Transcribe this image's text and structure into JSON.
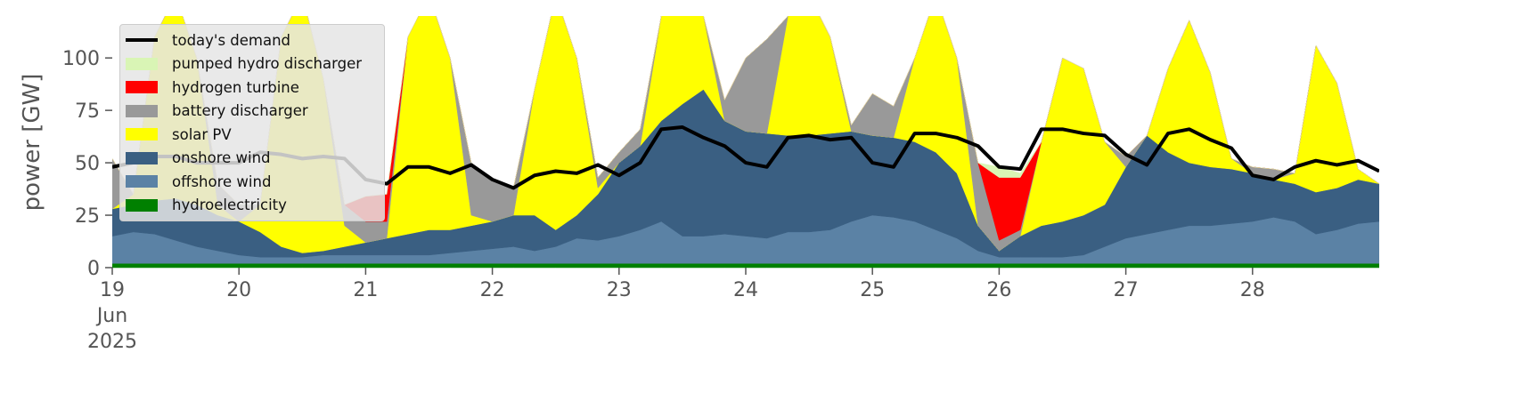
{
  "chart_data": {
    "type": "area",
    "ylabel": "power [GW]",
    "x": [
      0,
      4,
      8,
      12,
      16,
      20,
      24,
      28,
      32,
      36,
      40,
      44,
      48,
      52,
      56,
      60,
      64,
      68,
      72,
      76,
      80,
      84,
      88,
      92,
      96,
      100,
      104,
      108,
      112,
      116,
      120,
      124,
      128,
      132,
      136,
      140,
      144,
      148,
      152,
      156,
      160,
      164,
      168,
      172,
      176,
      180,
      184,
      188,
      192,
      196,
      200,
      204,
      208,
      212,
      216,
      220,
      224,
      228,
      232,
      236,
      240
    ],
    "xlim": [
      0,
      240
    ],
    "xticks": [
      {
        "value": 0,
        "label": "19\nJun\n2025"
      },
      {
        "value": 24,
        "label": "20"
      },
      {
        "value": 48,
        "label": "21"
      },
      {
        "value": 72,
        "label": "22"
      },
      {
        "value": 96,
        "label": "23"
      },
      {
        "value": 120,
        "label": "24"
      },
      {
        "value": 144,
        "label": "25"
      },
      {
        "value": 168,
        "label": "26"
      },
      {
        "value": 192,
        "label": "27"
      },
      {
        "value": 216,
        "label": "28"
      }
    ],
    "ylim": [
      0,
      120
    ],
    "yticks": [
      0,
      25,
      50,
      75,
      100
    ],
    "legend": "upper left",
    "series": [
      {
        "name": "today's demand",
        "color": "#000000",
        "style": "line",
        "values": [
          48,
          50,
          53,
          53,
          50,
          50,
          50,
          55,
          54,
          52,
          53,
          52,
          42,
          40,
          48,
          48,
          45,
          49,
          42,
          38,
          44,
          46,
          45,
          49,
          44,
          50,
          66,
          67,
          62,
          58,
          50,
          48,
          62,
          63,
          61,
          62,
          50,
          48,
          64,
          64,
          62,
          58,
          48,
          47,
          66,
          66,
          64,
          63,
          54,
          49,
          64,
          66,
          61,
          57,
          44,
          42,
          48,
          51,
          49,
          51,
          46
        ]
      },
      {
        "name": "pumped hydro discharger",
        "color": "#d9f5b5",
        "values": [
          0,
          0,
          0,
          0,
          0,
          0,
          0,
          0,
          0,
          0,
          0,
          0,
          0,
          0,
          0,
          0,
          0,
          0,
          0,
          0,
          0,
          0,
          0,
          0,
          0,
          0,
          0,
          0,
          0,
          0,
          0,
          0,
          0,
          0,
          0,
          0,
          0,
          0,
          0,
          0,
          0,
          0,
          5,
          2,
          0,
          0,
          0,
          0,
          0,
          0,
          0,
          0,
          0,
          0,
          0,
          0,
          0,
          0,
          0,
          0,
          0
        ]
      },
      {
        "name": "hydrogen turbine",
        "color": "#ff0000",
        "values": [
          0,
          0,
          0,
          0,
          0,
          0,
          0,
          0,
          0,
          0,
          0,
          0,
          12,
          13,
          0,
          0,
          0,
          0,
          0,
          0,
          0,
          0,
          0,
          0,
          0,
          0,
          0,
          0,
          0,
          0,
          0,
          0,
          0,
          0,
          0,
          0,
          0,
          0,
          0,
          0,
          0,
          0,
          30,
          25,
          0,
          0,
          0,
          0,
          0,
          0,
          0,
          0,
          0,
          0,
          0,
          0,
          0,
          0,
          0,
          0,
          0
        ]
      },
      {
        "name": "battery discharger",
        "color": "#999999",
        "values": [
          24,
          0,
          0,
          0,
          0,
          10,
          8,
          0,
          0,
          0,
          0,
          10,
          10,
          8,
          0,
          0,
          0,
          25,
          20,
          13,
          0,
          0,
          0,
          5,
          5,
          8,
          0,
          0,
          0,
          10,
          35,
          45,
          0,
          0,
          0,
          3,
          20,
          15,
          0,
          0,
          0,
          30,
          5,
          3,
          0,
          0,
          0,
          0,
          5,
          0,
          0,
          0,
          0,
          0,
          3,
          5,
          0,
          0,
          0,
          0,
          0
        ]
      },
      {
        "name": "solar PV",
        "color": "#ffff00",
        "values": [
          0,
          5,
          78,
          97,
          70,
          5,
          0,
          13,
          100,
          123,
          82,
          10,
          0,
          0,
          94,
          112,
          82,
          5,
          0,
          0,
          60,
          112,
          75,
          3,
          0,
          0,
          50,
          54,
          35,
          0,
          0,
          0,
          57,
          67,
          46,
          0,
          0,
          0,
          40,
          75,
          55,
          0,
          0,
          0,
          40,
          78,
          70,
          30,
          0,
          0,
          40,
          68,
          45,
          5,
          0,
          0,
          5,
          70,
          50,
          5,
          0
        ]
      },
      {
        "name": "onshore wind",
        "color": "#3a5f82",
        "values": [
          13,
          13,
          16,
          20,
          20,
          17,
          16,
          12,
          5,
          2,
          2,
          4,
          6,
          8,
          10,
          12,
          11,
          12,
          13,
          15,
          17,
          8,
          11,
          22,
          35,
          40,
          48,
          63,
          70,
          54,
          50,
          50,
          46,
          46,
          46,
          43,
          38,
          38,
          38,
          37,
          31,
          12,
          3,
          10,
          15,
          17,
          19,
          20,
          34,
          47,
          37,
          30,
          28,
          26,
          23,
          18,
          18,
          20,
          20,
          21,
          18
        ]
      },
      {
        "name": "offshore wind",
        "color": "#5b82a5",
        "values": [
          13,
          15,
          14,
          11,
          8,
          6,
          4,
          3,
          3,
          3,
          4,
          4,
          4,
          4,
          4,
          4,
          5,
          6,
          7,
          8,
          6,
          8,
          12,
          11,
          13,
          16,
          20,
          13,
          13,
          14,
          13,
          12,
          15,
          15,
          16,
          20,
          23,
          22,
          20,
          16,
          12,
          6,
          3,
          3,
          3,
          3,
          4,
          8,
          12,
          14,
          16,
          18,
          18,
          19,
          20,
          22,
          20,
          14,
          16,
          19,
          20
        ]
      },
      {
        "name": "hydroelectricity",
        "color": "#008000",
        "values": [
          2,
          2,
          2,
          2,
          2,
          2,
          2,
          2,
          2,
          2,
          2,
          2,
          2,
          2,
          2,
          2,
          2,
          2,
          2,
          2,
          2,
          2,
          2,
          2,
          2,
          2,
          2,
          2,
          2,
          2,
          2,
          2,
          2,
          2,
          2,
          2,
          2,
          2,
          2,
          2,
          2,
          2,
          2,
          2,
          2,
          2,
          2,
          2,
          2,
          2,
          2,
          2,
          2,
          2,
          2,
          2,
          2,
          2,
          2,
          2,
          2
        ]
      }
    ]
  }
}
